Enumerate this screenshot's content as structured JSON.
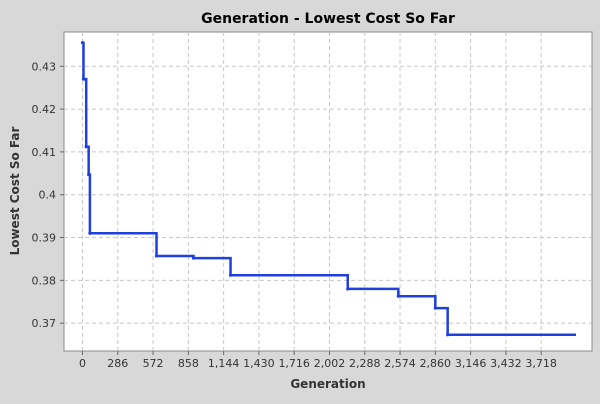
{
  "chart_data": {
    "type": "line",
    "title": "Generation - Lowest Cost So Far",
    "xlabel": "Generation",
    "ylabel": "Lowest Cost So Far",
    "xlim": [
      -150,
      4130
    ],
    "ylim": [
      0.3635,
      0.438
    ],
    "x_ticks": [
      0,
      286,
      572,
      858,
      1144,
      1430,
      1716,
      2002,
      2288,
      2574,
      2860,
      3146,
      3432,
      3718
    ],
    "x_tick_labels": [
      "0",
      "286",
      "572",
      "858",
      "1,144",
      "1,430",
      "1,716",
      "2,002",
      "2,288",
      "2,574",
      "2,860",
      "3,146",
      "3,432",
      "3,718"
    ],
    "y_ticks": [
      0.37,
      0.38,
      0.39,
      0.4,
      0.41,
      0.42,
      0.43
    ],
    "y_tick_labels": [
      "0.37",
      "0.38",
      "0.39",
      "0.4",
      "0.41",
      "0.42",
      "0.43"
    ],
    "grid": true,
    "legend": "none",
    "series": [
      {
        "color": "#1f3fdf",
        "step": true,
        "x": [
          0,
          8,
          30,
          50,
          60,
          600,
          900,
          1200,
          2150,
          2560,
          2860,
          2960,
          4000
        ],
        "y": [
          0.4355,
          0.427,
          0.4112,
          0.4047,
          0.391,
          0.3857,
          0.3852,
          0.3812,
          0.378,
          0.3763,
          0.3735,
          0.3673,
          0.3673
        ]
      }
    ]
  }
}
